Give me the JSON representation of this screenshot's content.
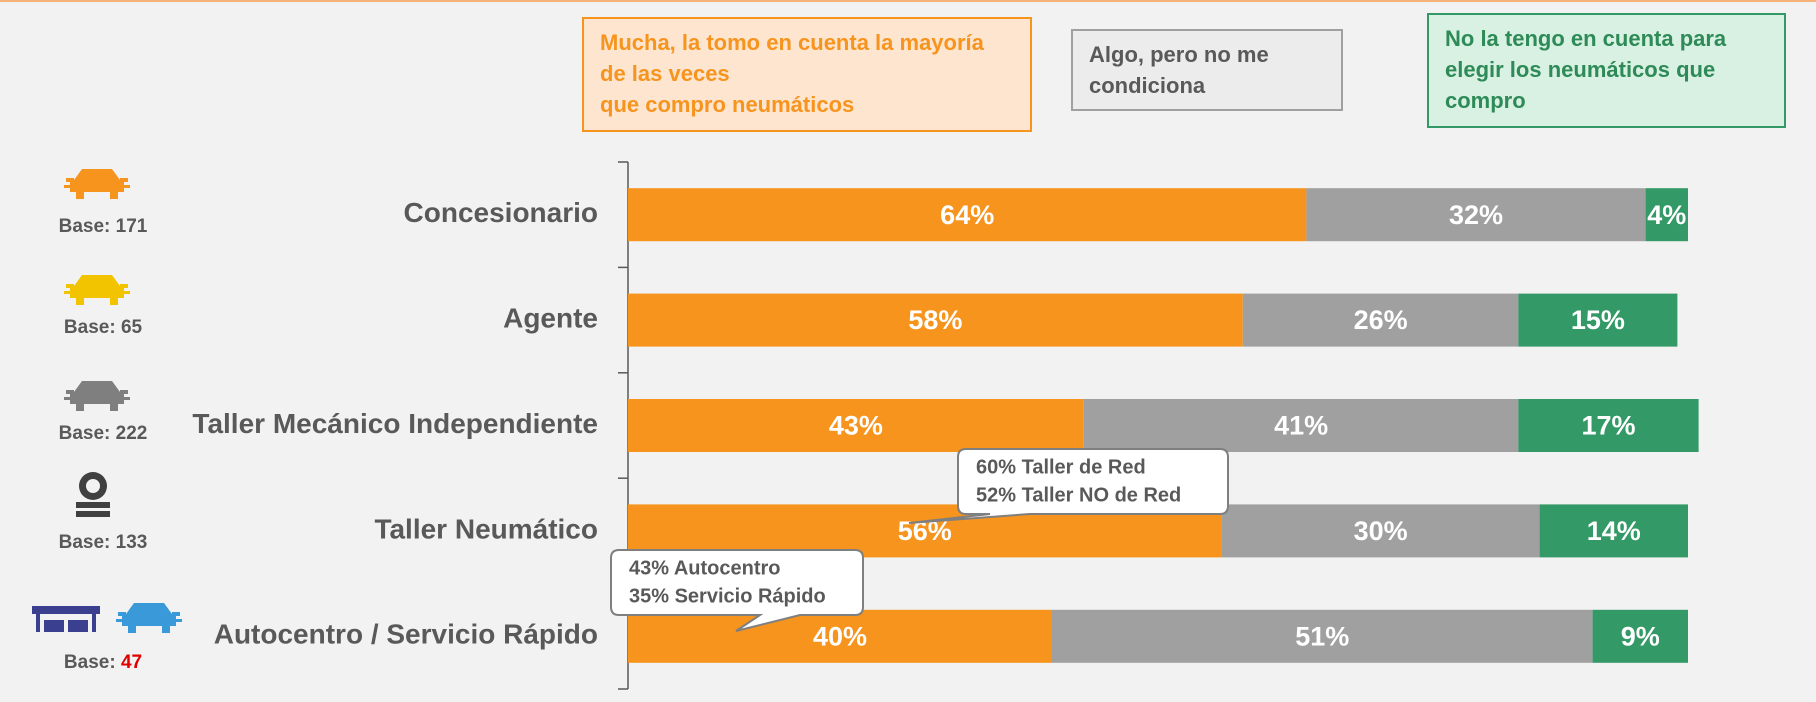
{
  "chart_data": {
    "type": "stacked_barh",
    "categories": [
      "Concesionario",
      "Agente",
      "Taller Mecánico Independiente",
      "Taller Neumático",
      "Autocentro / Servicio Rápido"
    ],
    "series": [
      {
        "name": "Mucha, la tomo en cuenta la mayoría de las veces\nque compro neumáticos",
        "color": "#f7941d",
        "values": [
          64,
          58,
          43,
          56,
          40
        ],
        "value_labels": [
          "64%",
          "58%",
          "43%",
          "56%",
          "40%"
        ]
      },
      {
        "name": "Algo, pero no me condiciona",
        "color": "#a0a0a0",
        "values": [
          32,
          26,
          41,
          30,
          51
        ],
        "value_labels": [
          "32%",
          "26%",
          "41%",
          "30%",
          "51%"
        ]
      },
      {
        "name": "No la tengo en cuenta para elegir los neumáticos que compro",
        "color": "#339966",
        "values": [
          4,
          15,
          17,
          14,
          9
        ],
        "value_labels": [
          "4%",
          "15%",
          "17%",
          "14%",
          "9%"
        ]
      }
    ],
    "xlim": [
      0,
      100
    ],
    "base_label": "Base:",
    "bases": [
      171,
      65,
      222,
      133,
      47
    ],
    "base_colors": [
      "#595959",
      "#595959",
      "#595959",
      "#595959",
      "#e00000"
    ],
    "annotations": [
      [
        "60% Taller de Red",
        "52% Taller NO de Red"
      ],
      [
        "43% Autocentro",
        "35% Servicio Rápido"
      ]
    ]
  }
}
